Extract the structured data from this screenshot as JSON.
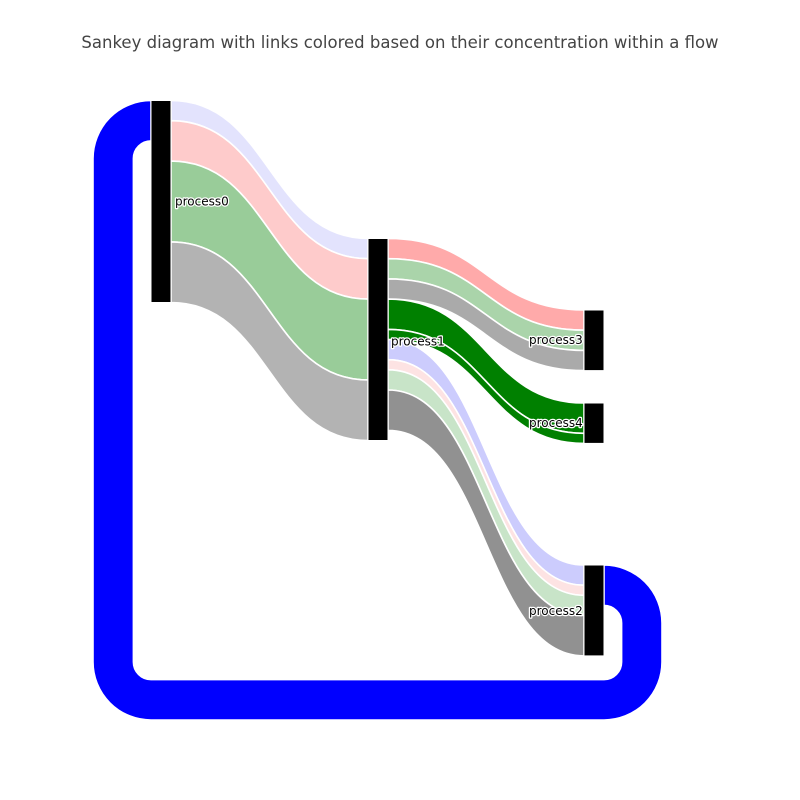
{
  "chart_data": {
    "type": "sankey",
    "title": "Sankey diagram with links colored based on their concentration within a flow",
    "node_color": "#000000",
    "nodes": [
      "process0",
      "process1",
      "process2",
      "process3",
      "process4"
    ],
    "links": [
      {
        "source": "process0",
        "target": "process1",
        "value": 1,
        "color": "#e3e3fd"
      },
      {
        "source": "process0",
        "target": "process1",
        "value": 2,
        "color": "#fecbcb"
      },
      {
        "source": "process0",
        "target": "process1",
        "value": 4,
        "color": "#99cc99"
      },
      {
        "source": "process0",
        "target": "process1",
        "value": 3,
        "color": "#b3b3b3"
      },
      {
        "source": "process1",
        "target": "process3",
        "value": 1,
        "color": "#ffaaaa"
      },
      {
        "source": "process1",
        "target": "process3",
        "value": 1,
        "color": "#aad4aa"
      },
      {
        "source": "process1",
        "target": "process3",
        "value": 1,
        "color": "#aaaaaa"
      },
      {
        "source": "process1",
        "target": "process4",
        "value": 1.5,
        "color": "#008000"
      },
      {
        "source": "process1",
        "target": "process4",
        "value": 0.5,
        "color": "#008000"
      },
      {
        "source": "process1",
        "target": "process2",
        "value": 1,
        "color": "#ccccfd"
      },
      {
        "source": "process1",
        "target": "process2",
        "value": 0.5,
        "color": "#fde3e3"
      },
      {
        "source": "process1",
        "target": "process2",
        "value": 1,
        "color": "#c8e4c8"
      },
      {
        "source": "process1",
        "target": "process2",
        "value": 2,
        "color": "#919191"
      },
      {
        "source": "process2",
        "target": "process0",
        "value": 2,
        "color": "#0000ff"
      }
    ]
  }
}
